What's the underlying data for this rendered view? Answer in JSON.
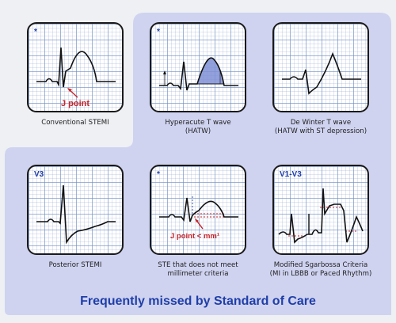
{
  "colors": {
    "accent": "#1f3ea8",
    "annotation": "#c8242a",
    "panel": "#cfd3f0",
    "fill": "#7f8fd6"
  },
  "cards": [
    {
      "tag": "*",
      "annotation": "J point",
      "caption": [
        "Conventional STEMI"
      ]
    },
    {
      "tag": "*",
      "caption": [
        "Hyperacute T wave",
        "(HATW)"
      ]
    },
    {
      "tag": "",
      "caption": [
        "De Winter T wave",
        "(HATW with ST depression)"
      ]
    },
    {
      "tag": "V3",
      "caption": [
        "Posterior STEMI"
      ]
    },
    {
      "tag": "*",
      "annotation": "J point < mm¹",
      "caption": [
        "STE that does not meet",
        "millimeter criteria"
      ]
    },
    {
      "tag": "V1-V3",
      "caption": [
        "Modified Sgarbossa Criteria",
        "(MI in LBBB or Paced Rhythm)"
      ]
    }
  ],
  "footer": "Frequently missed by Standard of Care"
}
